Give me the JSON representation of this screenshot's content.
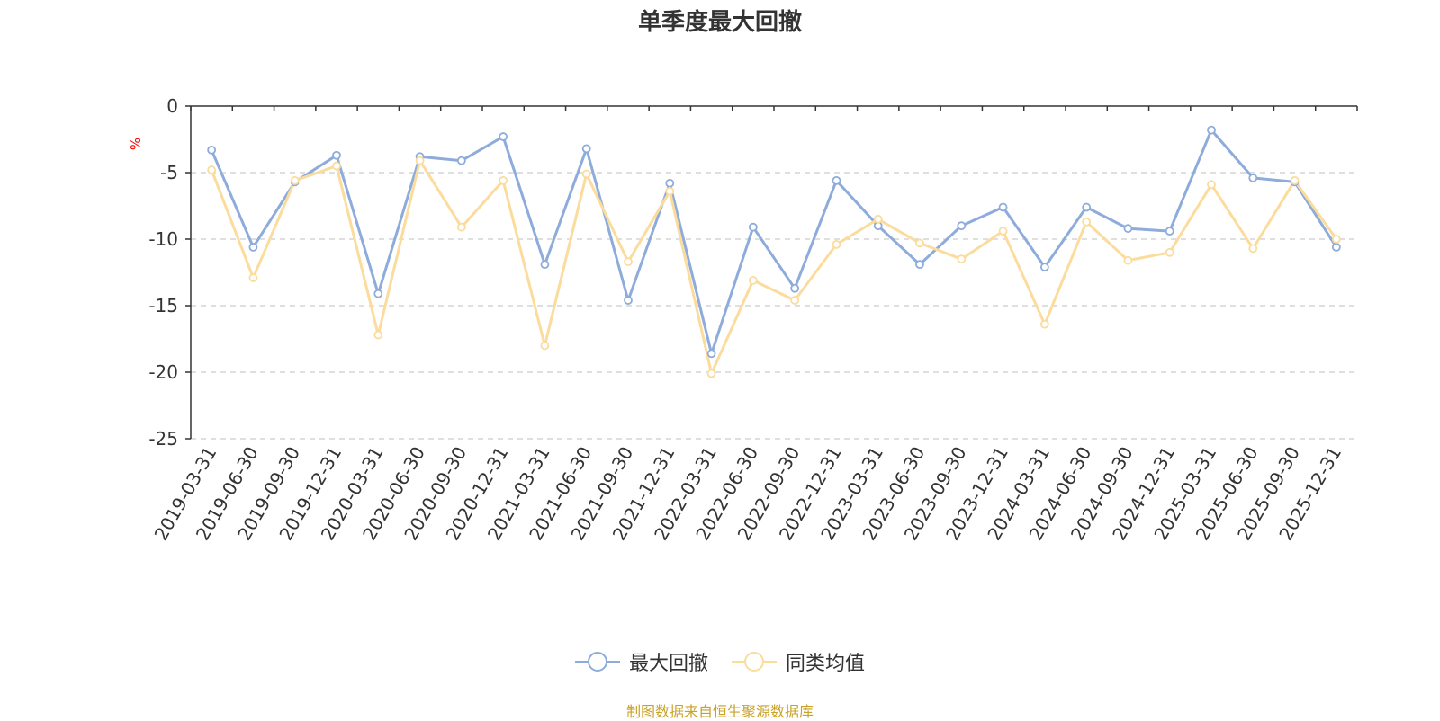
{
  "chart_data": {
    "type": "line",
    "title": "单季度最大回撤",
    "ylabel": "%",
    "xlabel": "",
    "ylim": [
      -25,
      0
    ],
    "yticks": [
      0,
      -5,
      -10,
      -15,
      -20,
      -25
    ],
    "grid": true,
    "legend_position": "bottom-center",
    "categories": [
      "2019-03-31",
      "2019-06-30",
      "2019-09-30",
      "2019-12-31",
      "2020-03-31",
      "2020-06-30",
      "2020-09-30",
      "2020-12-31",
      "2021-03-31",
      "2021-06-30",
      "2021-09-30",
      "2021-12-31",
      "2022-03-31",
      "2022-06-30",
      "2022-09-30",
      "2022-12-31",
      "2023-03-31",
      "2023-06-30",
      "2023-09-30",
      "2023-12-31",
      "2024-03-31",
      "2024-06-30",
      "2024-09-30",
      "2024-12-31",
      "2025-03-31",
      "2025-06-30",
      "2025-09-30",
      "2025-12-31"
    ],
    "series": [
      {
        "name": "最大回撤",
        "color": "#8eacdb",
        "values": [
          -3.3,
          -10.6,
          -5.7,
          -3.7,
          -14.1,
          -3.8,
          -4.1,
          -2.3,
          -11.9,
          -3.2,
          -14.6,
          -5.8,
          -18.6,
          -9.1,
          -13.7,
          -5.6,
          -9.0,
          -11.9,
          -9.0,
          -7.6,
          -12.1,
          -7.6,
          -9.2,
          -9.4,
          -1.8,
          -5.4,
          -5.7,
          -10.6
        ]
      },
      {
        "name": "同类均值",
        "color": "#fbdc9d",
        "values": [
          -4.8,
          -12.9,
          -5.6,
          -4.5,
          -17.2,
          -4.1,
          -9.1,
          -5.6,
          -18.0,
          -5.1,
          -11.7,
          -6.4,
          -20.1,
          -13.1,
          -14.6,
          -10.4,
          -8.5,
          -10.3,
          -11.5,
          -9.4,
          -16.4,
          -8.7,
          -11.6,
          -11.0,
          -5.9,
          -10.7,
          -5.6,
          -10.0
        ]
      }
    ]
  },
  "source_text": "制图数据来自恒生聚源数据库",
  "colors": {
    "axis": "#333333",
    "grid": "#cccccc",
    "ylabel": "#ff0000",
    "source": "#c9a227"
  }
}
